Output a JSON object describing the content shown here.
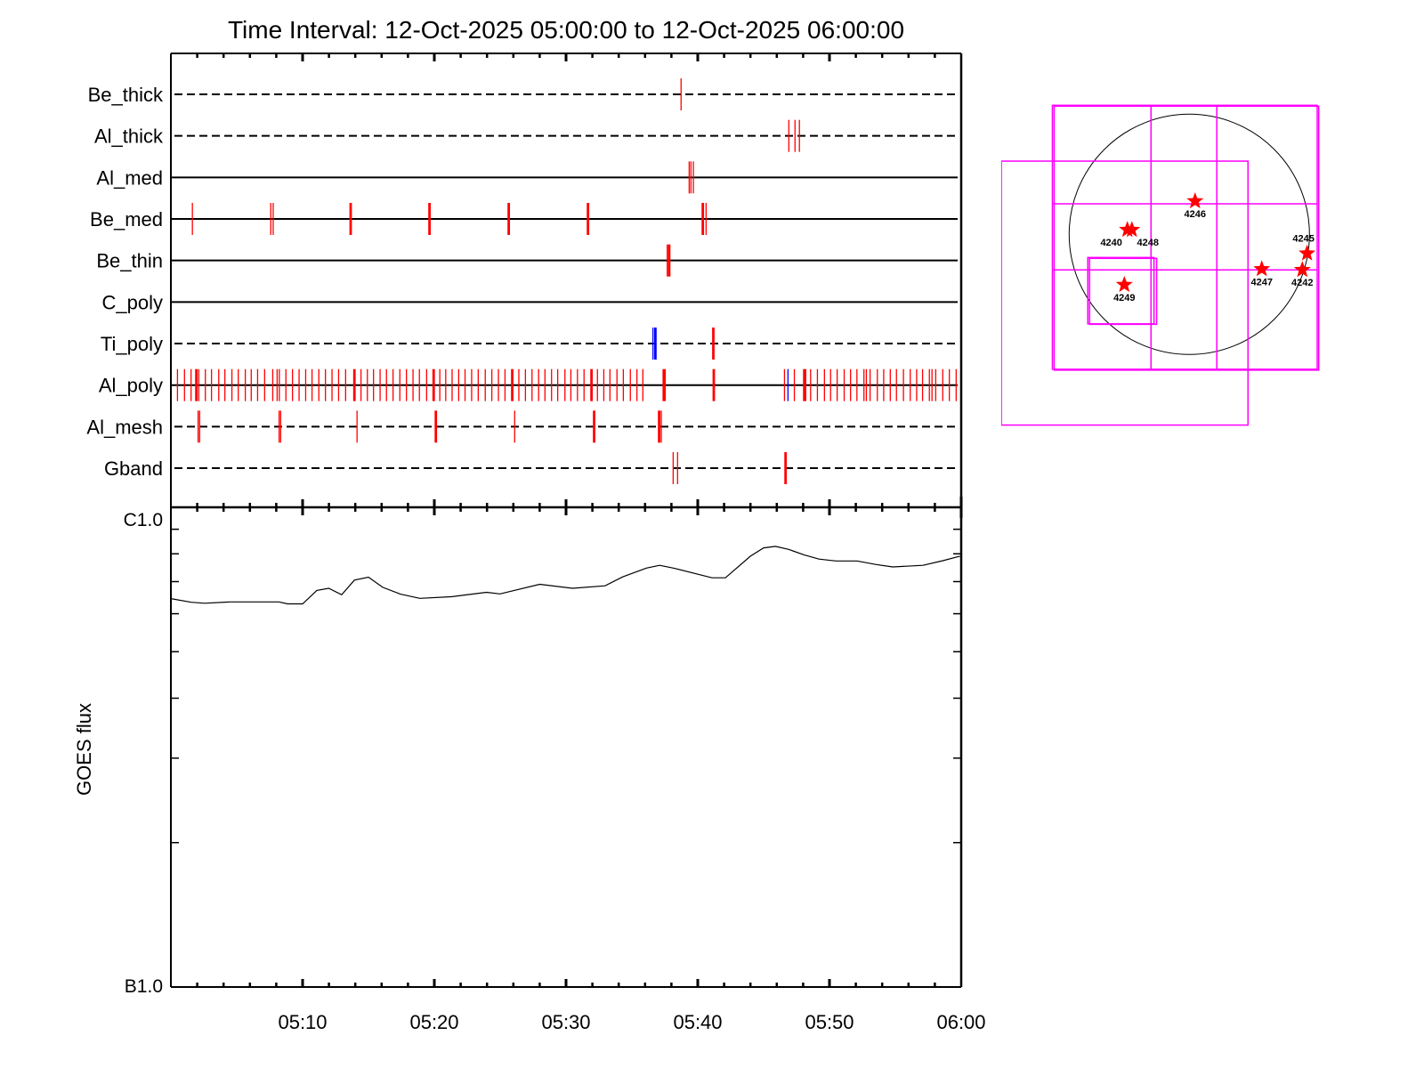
{
  "title": "Time Interval: 12-Oct-2025 05:00:00 to 12-Oct-2025 06:00:00",
  "chart_data": [
    {
      "type": "event-raster",
      "xlim": [
        "05:00:00",
        "06:00:00"
      ],
      "x_ticks": [
        "05:10",
        "05:20",
        "05:30",
        "05:40",
        "05:50",
        "06:00"
      ],
      "default_color": "#ff0000",
      "rows": [
        {
          "label": "Be_thick",
          "line": "dashed",
          "events": [
            "05:38:44"
          ]
        },
        {
          "label": "Al_thick",
          "line": "dashed",
          "events": [
            "05:46:55",
            "05:47:23",
            "05:47:43"
          ]
        },
        {
          "label": "Al_med",
          "line": "solid",
          "events": [
            "05:39:21",
            "05:39:29",
            "05:39:40"
          ]
        },
        {
          "label": "Be_med",
          "line": "solid",
          "events": [
            "05:01:38",
            "05:07:35",
            "05:07:46",
            {
              "t": "05:13:39",
              "n": 2
            },
            {
              "t": "05:19:38",
              "n": 2
            },
            {
              "t": "05:25:39",
              "n": 2
            },
            {
              "t": "05:31:40",
              "n": 2
            },
            {
              "t": "05:40:23",
              "n": 2
            },
            "05:40:38"
          ]
        },
        {
          "label": "Be_thin",
          "line": "solid",
          "events": [
            "05:37:41",
            {
              "t": "05:37:50",
              "n": 2
            }
          ]
        },
        {
          "label": "C_poly",
          "line": "solid",
          "events": []
        },
        {
          "label": "Ti_poly",
          "line": "dashed",
          "events": [
            {
              "t": "05:36:36",
              "c": "#0000ff"
            },
            {
              "t": "05:36:47",
              "c": "#0000ff",
              "n": 2
            },
            {
              "t": "05:41:11",
              "n": 2
            }
          ]
        },
        {
          "label": "Al_poly",
          "line": "solid",
          "events": [
            "05:00:00",
            "05:00:30",
            "05:01:02",
            "05:01:32",
            {
              "t": "05:01:56",
              "n": 2
            },
            "05:02:07",
            "05:02:37",
            "05:03:05",
            "05:03:38",
            "05:04:06",
            "05:04:38",
            "05:05:07",
            "05:05:39",
            "05:06:06",
            "05:06:35",
            "05:07:07",
            "05:07:44",
            "05:08:04",
            "05:08:14",
            "05:08:44",
            "05:09:14",
            "05:09:44",
            "05:10:14",
            "05:10:43",
            "05:11:14",
            "05:11:44",
            "05:12:14",
            "05:12:44",
            "05:13:16",
            {
              "t": "05:13:56",
              "n": 2
            },
            "05:14:26",
            "05:14:55",
            "05:15:23",
            "05:15:53",
            "05:16:22",
            "05:16:52",
            "05:17:23",
            "05:17:53",
            "05:18:23",
            "05:18:52",
            "05:19:25",
            {
              "t": "05:19:57",
              "n": 2
            },
            "05:20:25",
            "05:20:52",
            "05:21:21",
            "05:21:51",
            "05:22:20",
            "05:22:50",
            "05:23:20",
            "05:23:52",
            "05:24:22",
            "05:24:52",
            "05:25:22",
            {
              "t": "05:25:55",
              "n": 2
            },
            "05:26:25",
            "05:26:55",
            "05:27:25",
            "05:27:55",
            "05:28:24",
            "05:28:54",
            "05:29:22",
            "05:29:55",
            "05:30:22",
            "05:30:52",
            "05:31:22",
            {
              "t": "05:31:56",
              "n": 2
            },
            "05:32:23",
            "05:32:52",
            "05:33:20",
            "05:33:52",
            "05:34:21",
            "05:34:53",
            "05:35:23",
            "05:35:50",
            {
              "t": "05:37:27",
              "n": 3
            },
            {
              "t": "05:41:13",
              "n": 2
            },
            "05:46:35",
            {
              "t": "05:46:51",
              "c": "#0000ff"
            },
            "05:47:20",
            {
              "t": "05:48:07",
              "n": 3
            },
            "05:48:34",
            "05:49:05",
            "05:49:37",
            "05:50:05",
            "05:50:35",
            "05:51:07",
            "05:51:36",
            "05:52:05",
            "05:52:37",
            "05:52:48",
            "05:53:05",
            "05:53:38",
            "05:54:07",
            "05:54:37",
            "05:55:05",
            "05:55:37",
            "05:56:08",
            "05:56:37",
            "05:57:04",
            "05:57:35",
            "05:57:47",
            "05:58:04",
            "05:58:36",
            "05:59:06",
            "05:59:37"
          ]
        },
        {
          "label": "Al_mesh",
          "line": "dashed",
          "events": [
            "05:02:04",
            "05:02:11",
            "05:08:13",
            "05:08:20",
            "05:14:08",
            {
              "t": "05:20:07",
              "n": 2
            },
            "05:26:06",
            {
              "t": "05:32:08",
              "n": 2
            },
            {
              "t": "05:37:04",
              "n": 2
            },
            "05:37:14"
          ]
        },
        {
          "label": "Gband",
          "line": "dashed",
          "events": [
            "05:38:08",
            "05:38:28",
            {
              "t": "05:46:40",
              "n": 2
            }
          ]
        }
      ]
    },
    {
      "type": "line",
      "ylabel": "GOES flux",
      "yscale": "log",
      "ylim": [
        1e-07,
        1e-06
      ],
      "y_tick_labels": {
        "top": "C1.0",
        "bottom": "B1.0"
      },
      "xlim": [
        "05:00:00",
        "06:00:00"
      ],
      "x_ticks": [
        "05:10",
        "05:20",
        "05:30",
        "05:40",
        "05:50",
        "06:00"
      ],
      "color": "#000000",
      "points": [
        [
          "05:00:00",
          6.45e-07
        ],
        [
          "05:01:33",
          6.34e-07
        ],
        [
          "05:02:34",
          6.31e-07
        ],
        [
          "05:04:29",
          6.35e-07
        ],
        [
          "05:08:12",
          6.35e-07
        ],
        [
          "05:08:52",
          6.29e-07
        ],
        [
          "05:10:00",
          6.29e-07
        ],
        [
          "05:11:05",
          6.71e-07
        ],
        [
          "05:11:59",
          6.78e-07
        ],
        [
          "05:12:58",
          6.57e-07
        ],
        [
          "05:13:56",
          7.05e-07
        ],
        [
          "05:15:00",
          7.15e-07
        ],
        [
          "05:16:05",
          6.81e-07
        ],
        [
          "05:17:26",
          6.59e-07
        ],
        [
          "05:18:54",
          6.46e-07
        ],
        [
          "05:21:16",
          6.51e-07
        ],
        [
          "05:23:58",
          6.65e-07
        ],
        [
          "05:24:59",
          6.6e-07
        ],
        [
          "05:28:00",
          6.91e-07
        ],
        [
          "05:30:30",
          6.78e-07
        ],
        [
          "05:32:58",
          6.86e-07
        ],
        [
          "05:34:18",
          7.16e-07
        ],
        [
          "05:36:06",
          7.47e-07
        ],
        [
          "05:37:06",
          7.57e-07
        ],
        [
          "05:38:09",
          7.47e-07
        ],
        [
          "05:41:05",
          7.13e-07
        ],
        [
          "05:42:06",
          7.13e-07
        ],
        [
          "05:44:00",
          7.91e-07
        ],
        [
          "05:45:00",
          8.23e-07
        ],
        [
          "05:45:54",
          8.29e-07
        ],
        [
          "05:46:54",
          8.17e-07
        ],
        [
          "05:48:04",
          7.96e-07
        ],
        [
          "05:49:12",
          7.8e-07
        ],
        [
          "05:50:30",
          7.73e-07
        ],
        [
          "05:52:06",
          7.73e-07
        ],
        [
          "05:53:30",
          7.6e-07
        ],
        [
          "05:54:48",
          7.51e-07
        ],
        [
          "05:57:06",
          7.57e-07
        ],
        [
          "05:58:36",
          7.74e-07
        ],
        [
          "05:59:54",
          7.91e-07
        ]
      ]
    },
    {
      "type": "solar-map",
      "units": "arcsec",
      "disk_radius": 960,
      "box_color": "#ff00ff",
      "marker_color": "#ff0000",
      "regions": [
        {
          "label": "4246",
          "x": 46,
          "y": 265
        },
        {
          "label": "4240",
          "x": -495,
          "y": 36
        },
        {
          "label": "4248",
          "x": -459,
          "y": 36
        },
        {
          "label": "4249",
          "x": -519,
          "y": -403
        },
        {
          "label": "4247",
          "x": 579,
          "y": -277
        },
        {
          "label": "4245",
          "x": 941,
          "y": -152
        },
        {
          "label": "4242",
          "x": 903,
          "y": -284
        }
      ],
      "boxes": [
        {
          "x0": -1094,
          "x1": 1022,
          "y0": -1078,
          "y1": 1031
        },
        {
          "x0": -1080,
          "x1": 1034,
          "y0": -1085,
          "y1": 1024
        },
        {
          "x0": -1502,
          "x1": 469,
          "y0": -1524,
          "y1": 585
        },
        {
          "x0": -811,
          "x1": -282,
          "y0": -715,
          "y1": -185
        },
        {
          "x0": -797,
          "x1": -261,
          "y0": -719,
          "y1": -192
        }
      ],
      "grid_x": [
        -306,
        220
      ],
      "grid_y": [
        244,
        -284
      ]
    }
  ]
}
